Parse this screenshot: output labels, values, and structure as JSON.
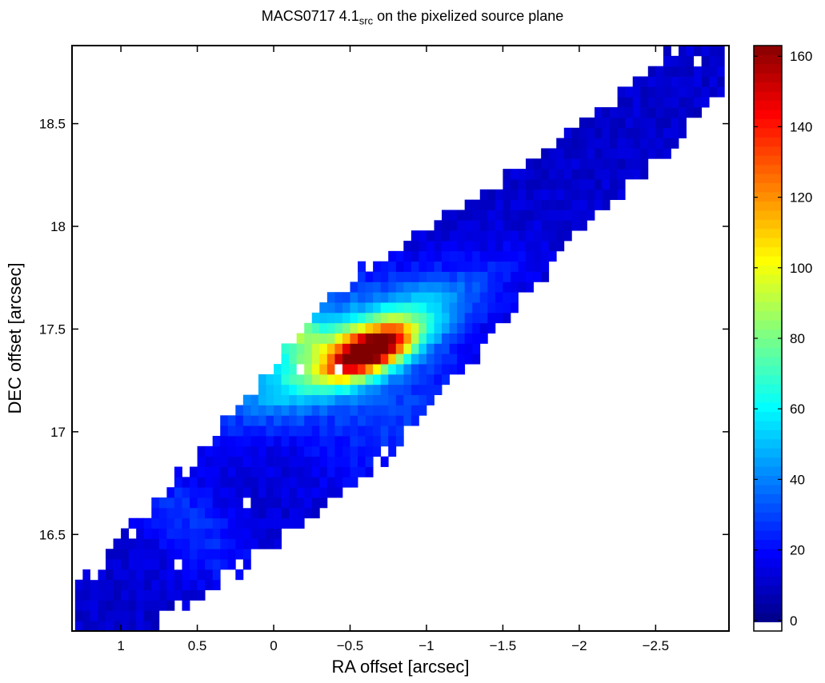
{
  "chart_data": {
    "type": "heatmap",
    "title": "MACS0717 4.1",
    "title_subscript": "src",
    "title_suffix": " on the pixelized source plane",
    "xlabel": "RA offset [arcsec]",
    "ylabel": "DEC offset [arcsec]",
    "x_axis_reversed": true,
    "xlim": [
      1.32,
      -2.98
    ],
    "ylim": [
      16.03,
      18.88
    ],
    "xticks": [
      1,
      0.5,
      0,
      -0.5,
      -1,
      -1.5,
      -2,
      -2.5
    ],
    "xtick_labels": [
      "1",
      "0.5",
      "0",
      "−0.5",
      "−1",
      "−1.5",
      "−2",
      "−2.5"
    ],
    "yticks": [
      16.5,
      17,
      17.5,
      18,
      18.5
    ],
    "ytick_labels": [
      "16.5",
      "17",
      "17.5",
      "18",
      "18.5"
    ],
    "colorbar": {
      "range": [
        -3,
        163
      ],
      "ticks": [
        0,
        20,
        40,
        60,
        80,
        100,
        120,
        140,
        160
      ],
      "tick_labels": [
        "0",
        "20",
        "40",
        "60",
        "80",
        "100",
        "120",
        "140",
        "160"
      ],
      "colormap": "jet-with-white-below-zero",
      "placement": "right"
    },
    "pixel_size_arcsec": 0.05,
    "emission_region": {
      "description_of_shape": "elongated band from lower-left to upper-right",
      "peak_value": 162,
      "peak_ra": -0.63,
      "peak_dec": 17.39,
      "background_level": 10
    },
    "grid": false
  }
}
